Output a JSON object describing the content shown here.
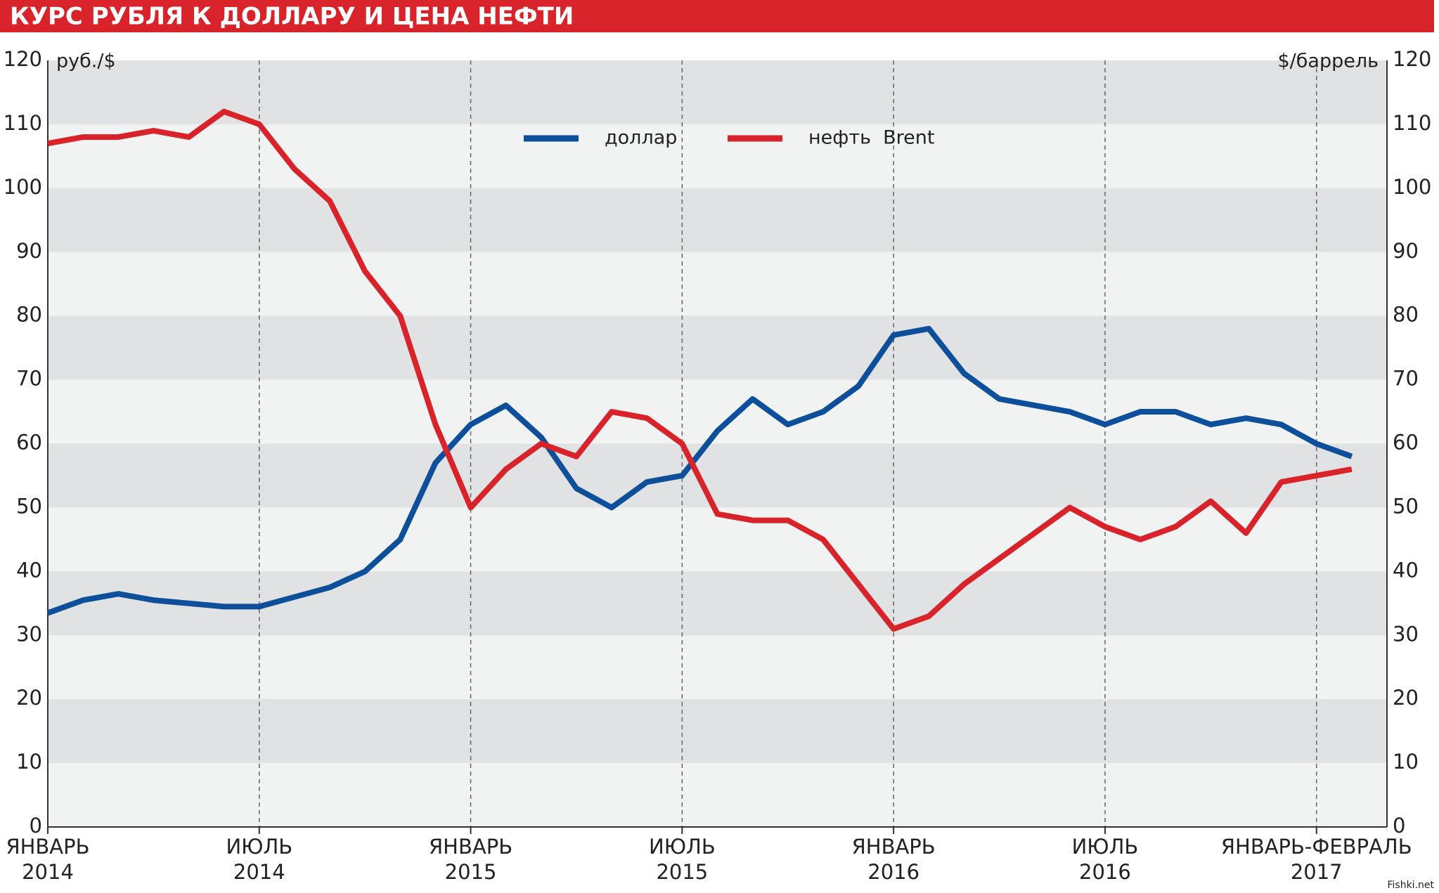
{
  "chart_data": {
    "type": "line",
    "title": "КУРС РУБЛЯ К ДОЛЛАРУ И ЦЕНА НЕФТИ",
    "y_label": "руб./$",
    "y2_label": "$/баррель",
    "watermark": "Fishki.net",
    "x": [
      "2014-01",
      "2014-02",
      "2014-03",
      "2014-04",
      "2014-05",
      "2014-06",
      "2014-07",
      "2014-08",
      "2014-09",
      "2014-10",
      "2014-11",
      "2014-12",
      "2015-01",
      "2015-02",
      "2015-03",
      "2015-04",
      "2015-05",
      "2015-06",
      "2015-07",
      "2015-08",
      "2015-09",
      "2015-10",
      "2015-11",
      "2015-12",
      "2016-01",
      "2016-02",
      "2016-03",
      "2016-04",
      "2016-05",
      "2016-06",
      "2016-07",
      "2016-08",
      "2016-09",
      "2016-10",
      "2016-11",
      "2016-12",
      "2017-01",
      "2017-02"
    ],
    "xlim": [
      "2014-01",
      "2017-03"
    ],
    "xticks": [
      {
        "value": "2014-01",
        "label": [
          "ЯНВАРЬ",
          "2014"
        ]
      },
      {
        "value": "2014-07",
        "label": [
          "ИЮЛЬ",
          "2014"
        ]
      },
      {
        "value": "2015-01",
        "label": [
          "ЯНВАРЬ",
          "2015"
        ]
      },
      {
        "value": "2015-07",
        "label": [
          "ИЮЛЬ",
          "2015"
        ]
      },
      {
        "value": "2016-01",
        "label": [
          "ЯНВАРЬ",
          "2016"
        ]
      },
      {
        "value": "2016-07",
        "label": [
          "ИЮЛЬ",
          "2016"
        ]
      },
      {
        "value": "2017-01",
        "label": [
          "ЯНВАРЬ-ФЕВРАЛЬ",
          "2017"
        ]
      }
    ],
    "ylim": [
      0,
      120
    ],
    "yticks": [
      0,
      10,
      20,
      30,
      40,
      50,
      60,
      70,
      80,
      90,
      100,
      110,
      120
    ],
    "y2lim": [
      0,
      120
    ],
    "y2ticks": [
      0,
      10,
      20,
      30,
      40,
      50,
      60,
      70,
      80,
      90,
      100,
      110,
      120
    ],
    "series": [
      {
        "name": "доллар",
        "color": "#0d4f9a",
        "values": [
          33.5,
          35.5,
          36.5,
          35.5,
          35,
          34.5,
          34.5,
          36,
          37.5,
          40,
          45,
          57,
          63,
          66,
          61,
          53,
          50,
          54,
          55,
          62,
          67,
          63,
          65,
          69,
          77,
          78,
          71,
          67,
          66,
          65,
          63,
          65,
          65,
          63,
          64,
          63,
          60,
          58
        ]
      },
      {
        "name": "нефть  Brent",
        "color": "#d8232a",
        "axis": "y2",
        "values": [
          107,
          108,
          108,
          109,
          108,
          112,
          110,
          103,
          98,
          87,
          80,
          63,
          50,
          56,
          60,
          58,
          65,
          64,
          60,
          49,
          48,
          48,
          45,
          38,
          31,
          33,
          38,
          42,
          46,
          50,
          47,
          45,
          47,
          51,
          46,
          54,
          55,
          56
        ]
      }
    ]
  }
}
